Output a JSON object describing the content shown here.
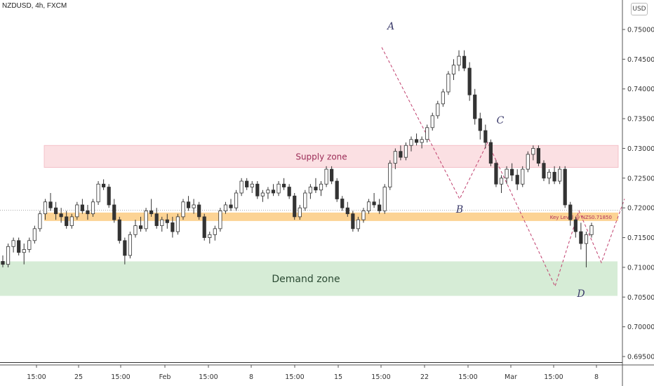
{
  "header": {
    "symbol_label": "NZDUSD, 4h, FXCM",
    "currency_button": "USD"
  },
  "chart_data": {
    "type": "candlestick",
    "symbol": "NZDUSD",
    "timeframe": "4h",
    "ylim": [
      0.6935,
      0.7525
    ],
    "y_ticks": [
      "0.75000",
      "0.74500",
      "0.74000",
      "0.73500",
      "0.73000",
      "0.72500",
      "0.72000",
      "0.71500",
      "0.71000",
      "0.70500",
      "0.70000",
      "0.69500"
    ],
    "y_tick_values": [
      0.75,
      0.745,
      0.74,
      0.735,
      0.73,
      0.725,
      0.72,
      0.715,
      0.71,
      0.705,
      0.7,
      0.695
    ],
    "x_ticks": [
      "15:00",
      "25",
      "15:00",
      "Feb",
      "15:00",
      "8",
      "15:00",
      "15",
      "15:00",
      "22",
      "15:00",
      "Mar",
      "15:00",
      "8"
    ],
    "zones": [
      {
        "label": "Supply zone",
        "top": 0.7305,
        "bottom": 0.7268,
        "color": "#fbe0e3",
        "text_color": "#9c2d58"
      },
      {
        "label": "Demand zone",
        "top": 0.711,
        "bottom": 0.7052,
        "color": "#d6ecd6",
        "text_color": "#2b4a33"
      }
    ],
    "key_level": {
      "label": "Key Level @ NZS0.71850",
      "value": 0.7185,
      "color": "#fcd394"
    },
    "pattern_points": [
      {
        "label": "A",
        "value": 0.752
      },
      {
        "label": "B",
        "value": 0.7195
      },
      {
        "label": "C",
        "value": 0.7335
      },
      {
        "label": "D",
        "value": 0.704
      }
    ],
    "pattern_line_values": [
      0.747,
      0.7215,
      0.731,
      0.7068,
      0.7195,
      0.7108,
      0.7215
    ],
    "bottom_line": 0.694,
    "candles": [
      [
        0.711,
        0.712,
        0.71,
        0.7105
      ],
      [
        0.7105,
        0.714,
        0.71,
        0.7135
      ],
      [
        0.7135,
        0.715,
        0.7125,
        0.7145
      ],
      [
        0.7145,
        0.715,
        0.712,
        0.7125
      ],
      [
        0.7125,
        0.714,
        0.7105,
        0.713
      ],
      [
        0.713,
        0.715,
        0.7125,
        0.7145
      ],
      [
        0.7145,
        0.717,
        0.714,
        0.7165
      ],
      [
        0.7165,
        0.7195,
        0.716,
        0.719
      ],
      [
        0.719,
        0.7215,
        0.718,
        0.721
      ],
      [
        0.721,
        0.7225,
        0.7195,
        0.72
      ],
      [
        0.72,
        0.721,
        0.718,
        0.719
      ],
      [
        0.719,
        0.72,
        0.7175,
        0.7185
      ],
      [
        0.7185,
        0.7195,
        0.7165,
        0.717
      ],
      [
        0.717,
        0.719,
        0.7165,
        0.7185
      ],
      [
        0.7185,
        0.721,
        0.718,
        0.7205
      ],
      [
        0.7205,
        0.7215,
        0.719,
        0.7195
      ],
      [
        0.7195,
        0.7205,
        0.718,
        0.719
      ],
      [
        0.719,
        0.7215,
        0.7185,
        0.721
      ],
      [
        0.721,
        0.7245,
        0.7205,
        0.724
      ],
      [
        0.724,
        0.7248,
        0.723,
        0.7235
      ],
      [
        0.7235,
        0.724,
        0.72,
        0.7205
      ],
      [
        0.7205,
        0.7215,
        0.7175,
        0.718
      ],
      [
        0.718,
        0.7185,
        0.714,
        0.7145
      ],
      [
        0.7145,
        0.715,
        0.7105,
        0.712
      ],
      [
        0.712,
        0.716,
        0.7115,
        0.7155
      ],
      [
        0.7155,
        0.718,
        0.715,
        0.717
      ],
      [
        0.717,
        0.7185,
        0.716,
        0.7165
      ],
      [
        0.7165,
        0.72,
        0.716,
        0.7195
      ],
      [
        0.7195,
        0.7215,
        0.7185,
        0.719
      ],
      [
        0.719,
        0.72,
        0.7165,
        0.717
      ],
      [
        0.717,
        0.7185,
        0.716,
        0.718
      ],
      [
        0.718,
        0.719,
        0.7165,
        0.7175
      ],
      [
        0.7175,
        0.7185,
        0.715,
        0.716
      ],
      [
        0.716,
        0.719,
        0.7155,
        0.7185
      ],
      [
        0.7185,
        0.7215,
        0.718,
        0.721
      ],
      [
        0.721,
        0.722,
        0.7195,
        0.72
      ],
      [
        0.72,
        0.7215,
        0.719,
        0.7205
      ],
      [
        0.7205,
        0.721,
        0.718,
        0.7185
      ],
      [
        0.7185,
        0.719,
        0.7145,
        0.715
      ],
      [
        0.715,
        0.716,
        0.714,
        0.7155
      ],
      [
        0.7155,
        0.717,
        0.7145,
        0.7165
      ],
      [
        0.7165,
        0.72,
        0.716,
        0.7195
      ],
      [
        0.7195,
        0.721,
        0.719,
        0.7205
      ],
      [
        0.7205,
        0.7215,
        0.7195,
        0.72
      ],
      [
        0.72,
        0.723,
        0.7195,
        0.7225
      ],
      [
        0.7225,
        0.725,
        0.722,
        0.7245
      ],
      [
        0.7245,
        0.725,
        0.723,
        0.7235
      ],
      [
        0.7235,
        0.7245,
        0.7225,
        0.724
      ],
      [
        0.724,
        0.7245,
        0.7215,
        0.722
      ],
      [
        0.722,
        0.723,
        0.721,
        0.7225
      ],
      [
        0.7225,
        0.7235,
        0.7215,
        0.723
      ],
      [
        0.723,
        0.724,
        0.722,
        0.7225
      ],
      [
        0.7225,
        0.7245,
        0.722,
        0.724
      ],
      [
        0.724,
        0.725,
        0.723,
        0.7235
      ],
      [
        0.7235,
        0.724,
        0.7215,
        0.722
      ],
      [
        0.722,
        0.7225,
        0.718,
        0.7185
      ],
      [
        0.7185,
        0.7205,
        0.718,
        0.72
      ],
      [
        0.72,
        0.723,
        0.7195,
        0.7225
      ],
      [
        0.7225,
        0.724,
        0.7215,
        0.7235
      ],
      [
        0.7235,
        0.725,
        0.7225,
        0.723
      ],
      [
        0.723,
        0.7245,
        0.722,
        0.724
      ],
      [
        0.724,
        0.727,
        0.7235,
        0.7265
      ],
      [
        0.7265,
        0.727,
        0.724,
        0.7245
      ],
      [
        0.7245,
        0.725,
        0.721,
        0.7215
      ],
      [
        0.7215,
        0.722,
        0.7195,
        0.72
      ],
      [
        0.72,
        0.721,
        0.7185,
        0.719
      ],
      [
        0.719,
        0.7195,
        0.716,
        0.7165
      ],
      [
        0.7165,
        0.7185,
        0.716,
        0.718
      ],
      [
        0.718,
        0.72,
        0.7175,
        0.7195
      ],
      [
        0.7195,
        0.7215,
        0.719,
        0.721
      ],
      [
        0.721,
        0.7225,
        0.72,
        0.7205
      ],
      [
        0.7205,
        0.7215,
        0.719,
        0.7195
      ],
      [
        0.7195,
        0.724,
        0.719,
        0.7235
      ],
      [
        0.7235,
        0.728,
        0.723,
        0.7275
      ],
      [
        0.7275,
        0.73,
        0.7265,
        0.7295
      ],
      [
        0.7295,
        0.7305,
        0.728,
        0.7285
      ],
      [
        0.7285,
        0.731,
        0.728,
        0.7305
      ],
      [
        0.7305,
        0.732,
        0.7295,
        0.7315
      ],
      [
        0.7315,
        0.7325,
        0.7305,
        0.731
      ],
      [
        0.731,
        0.732,
        0.73,
        0.7315
      ],
      [
        0.7315,
        0.734,
        0.731,
        0.7335
      ],
      [
        0.7335,
        0.736,
        0.733,
        0.7355
      ],
      [
        0.7355,
        0.738,
        0.735,
        0.7375
      ],
      [
        0.7375,
        0.74,
        0.737,
        0.7395
      ],
      [
        0.7395,
        0.743,
        0.739,
        0.7425
      ],
      [
        0.7425,
        0.745,
        0.7415,
        0.744
      ],
      [
        0.744,
        0.7465,
        0.743,
        0.7455
      ],
      [
        0.7455,
        0.7465,
        0.743,
        0.7435
      ],
      [
        0.7435,
        0.7445,
        0.738,
        0.739
      ],
      [
        0.739,
        0.74,
        0.734,
        0.735
      ],
      [
        0.735,
        0.736,
        0.7315,
        0.733
      ],
      [
        0.733,
        0.734,
        0.73,
        0.731
      ],
      [
        0.731,
        0.7315,
        0.727,
        0.7275
      ],
      [
        0.7275,
        0.728,
        0.7235,
        0.724
      ],
      [
        0.724,
        0.7255,
        0.7225,
        0.725
      ],
      [
        0.725,
        0.727,
        0.724,
        0.7265
      ],
      [
        0.7265,
        0.7275,
        0.7245,
        0.7255
      ],
      [
        0.7255,
        0.7265,
        0.723,
        0.724
      ],
      [
        0.724,
        0.727,
        0.7235,
        0.7265
      ],
      [
        0.7265,
        0.7295,
        0.726,
        0.729
      ],
      [
        0.729,
        0.7305,
        0.728,
        0.73
      ],
      [
        0.73,
        0.7305,
        0.727,
        0.7275
      ],
      [
        0.7275,
        0.728,
        0.7245,
        0.725
      ],
      [
        0.725,
        0.7265,
        0.724,
        0.726
      ],
      [
        0.726,
        0.727,
        0.724,
        0.7245
      ],
      [
        0.7245,
        0.727,
        0.724,
        0.7265
      ],
      [
        0.7265,
        0.727,
        0.72,
        0.7205
      ],
      [
        0.7205,
        0.721,
        0.717,
        0.718
      ],
      [
        0.718,
        0.7185,
        0.715,
        0.716
      ],
      [
        0.716,
        0.7175,
        0.713,
        0.714
      ],
      [
        0.714,
        0.716,
        0.71,
        0.7155
      ],
      [
        0.7155,
        0.7175,
        0.715,
        0.717
      ]
    ]
  }
}
